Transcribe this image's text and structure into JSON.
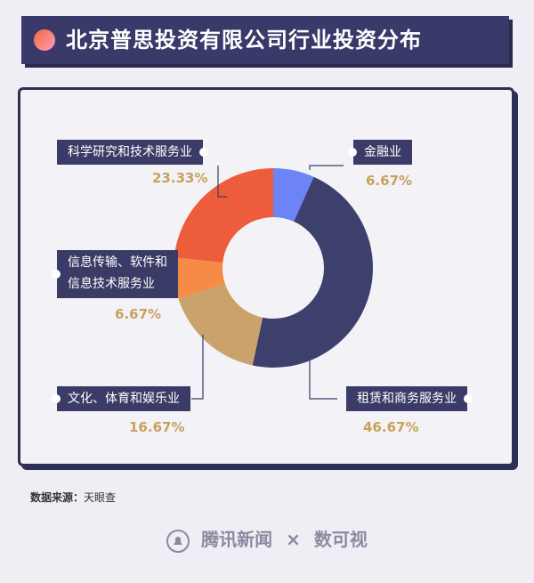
{
  "header": {
    "title": "北京普思投资有限公司行业投资分布"
  },
  "chart_data": {
    "type": "pie",
    "donut": true,
    "slices": [
      {
        "label": "金融业",
        "value": 6.67,
        "value_label": "6.67%",
        "color": "#6c84f5"
      },
      {
        "label": "租赁和商务服务业",
        "value": 46.67,
        "value_label": "46.67%",
        "color": "#3d3f6c"
      },
      {
        "label": "文化、体育和娱乐业",
        "value": 16.67,
        "value_label": "16.67%",
        "color": "#c9a36b"
      },
      {
        "label": "信息传输、软件和信息技术服务业",
        "value": 6.67,
        "value_label": "6.67%",
        "color": "#f58b47"
      },
      {
        "label": "科学研究和技术服务业",
        "value": 23.33,
        "value_label": "23.33%",
        "color": "#ee5d3b"
      }
    ]
  },
  "labels": {
    "finance": "金融业",
    "leasing": "租赁和商务服务业",
    "culture": "文化、体育和娱乐业",
    "it_line1": "信息传输、软件和",
    "it_line2": "信息技术服务业",
    "science": "科学研究和技术服务业"
  },
  "source": {
    "label": "数据来源：",
    "value": "天眼查"
  },
  "footer": {
    "brand": "腾讯新闻",
    "times": "×",
    "partner": "数可视"
  }
}
